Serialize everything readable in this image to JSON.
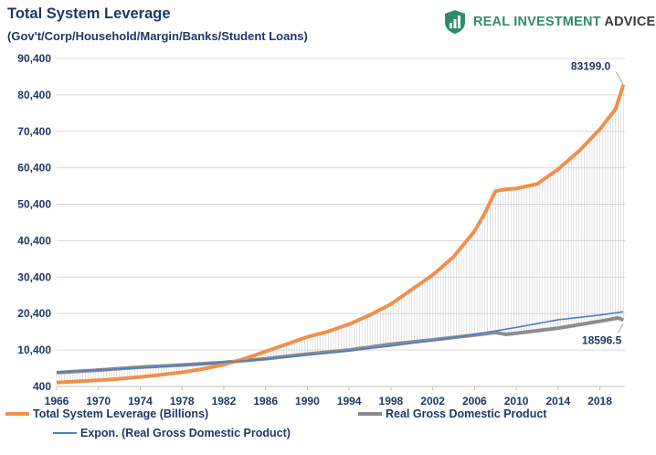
{
  "header": {
    "title": "Total System Leverage",
    "subtitle": "(Gov't/Corp/Household/Margin/Banks/Student Loans)"
  },
  "brand": {
    "name_part1": "REAL INVESTMENT",
    "name_part2": "ADVICE",
    "logo_icon": "shield-chart-icon",
    "accent_color": "#2e8b6e"
  },
  "chart_data": {
    "type": "line",
    "title": "Total System Leverage",
    "subtitle": "(Gov't/Corp/Household/Margin/Banks/Student Loans)",
    "xlabel": "",
    "ylabel": "",
    "xlim": [
      1966,
      2020.4
    ],
    "ylim": [
      400,
      90400
    ],
    "x_ticks": [
      "1966",
      "1970",
      "1974",
      "1978",
      "1982",
      "1986",
      "1990",
      "1994",
      "1998",
      "2002",
      "2006",
      "2010",
      "2014",
      "2018"
    ],
    "y_ticks": [
      "400",
      "10,400",
      "20,400",
      "30,400",
      "40,400",
      "50,400",
      "60,400",
      "70,400",
      "80,400",
      "90,400"
    ],
    "grid": true,
    "legend_position": "bottom",
    "annotations": [
      {
        "text": "83199.0",
        "series": "Total System Leverage (Billions)"
      },
      {
        "text": "18596.5",
        "series": "Real Gross Domestic Product"
      }
    ],
    "series": [
      {
        "name": "Total System Leverage (Billions)",
        "color": "#f0904a",
        "x": [
          1966,
          1968,
          1970,
          1972,
          1974,
          1976,
          1978,
          1980,
          1982,
          1984,
          1986,
          1988,
          1990,
          1992,
          1994,
          1996,
          1998,
          2000,
          2002,
          2004,
          2006,
          2007,
          2008,
          2009,
          2010,
          2012,
          2014,
          2016,
          2018,
          2019.5,
          2020.25
        ],
        "values": [
          1500,
          1800,
          2100,
          2500,
          3000,
          3600,
          4300,
          5200,
          6400,
          8000,
          10000,
          12000,
          14000,
          15500,
          17500,
          20000,
          23000,
          27000,
          31000,
          36000,
          43000,
          48000,
          54000,
          54500,
          54700,
          56000,
          60000,
          65000,
          71000,
          76500,
          83199
        ]
      },
      {
        "name": "Real Gross Domestic Product",
        "color": "#8c8c8c",
        "x": [
          1966,
          1970,
          1974,
          1978,
          1982,
          1986,
          1990,
          1994,
          1998,
          2002,
          2006,
          2008,
          2009,
          2010,
          2014,
          2018,
          2019.75,
          2020.25
        ],
        "values": [
          4200,
          4900,
          5700,
          6300,
          7000,
          8000,
          9300,
          10400,
          12000,
          13200,
          14500,
          15200,
          14700,
          15000,
          16400,
          18300,
          19200,
          18596.5
        ]
      },
      {
        "name": "Expon. (Real Gross Domestic Product)",
        "color": "#4a7ec9",
        "x": [
          1966,
          1970,
          1974,
          1978,
          1982,
          1986,
          1990,
          1994,
          1998,
          2002,
          2006,
          2010,
          2014,
          2018,
          2020.25
        ],
        "values": [
          4300,
          4900,
          5500,
          6200,
          7000,
          7900,
          9000,
          10200,
          11500,
          13000,
          14700,
          16600,
          18700,
          20000,
          20900
        ]
      }
    ]
  }
}
